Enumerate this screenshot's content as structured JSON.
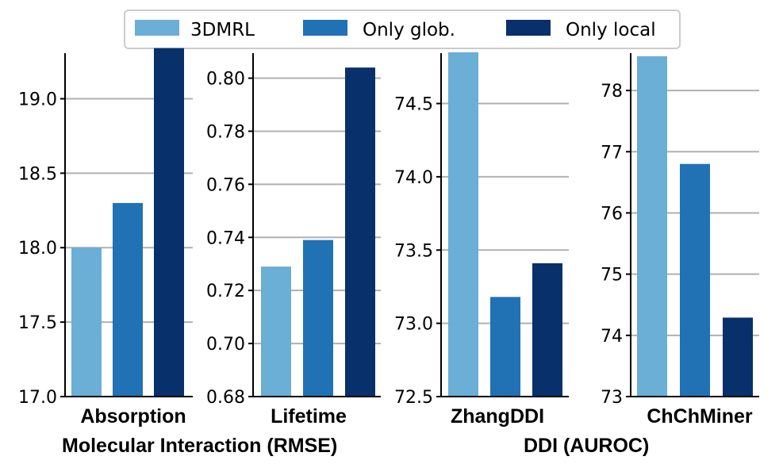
{
  "legend": [
    {
      "label": "3DMRL",
      "color": "#6baed6"
    },
    {
      "label": "Only glob.",
      "color": "#2171b5"
    },
    {
      "label": "Only local",
      "color": "#08306b"
    }
  ],
  "group_labels": {
    "left": "Molecular Interaction (RMSE)",
    "right": "DDI (AUROC)"
  },
  "chart_data": [
    {
      "type": "bar",
      "title": "Absorption",
      "categories": [
        "3DMRL",
        "Only glob.",
        "Only local"
      ],
      "values": [
        18.0,
        18.3,
        19.34
      ],
      "ylim": [
        17.0,
        19.45
      ],
      "yticks": [
        17.0,
        17.5,
        18.0,
        18.5,
        19.0
      ],
      "tick_labels": [
        "17.0",
        "17.5",
        "18.0",
        "18.5",
        "19.0"
      ],
      "grid": true
    },
    {
      "type": "bar",
      "title": "Lifetime",
      "categories": [
        "3DMRL",
        "Only glob.",
        "Only local"
      ],
      "values": [
        0.729,
        0.739,
        0.804
      ],
      "ylim": [
        0.68,
        0.8175
      ],
      "yticks": [
        0.68,
        0.7,
        0.72,
        0.74,
        0.76,
        0.78,
        0.8
      ],
      "tick_labels": [
        "0.68",
        "0.70",
        "0.72",
        "0.74",
        "0.76",
        "0.78",
        "0.80"
      ],
      "grid": true
    },
    {
      "type": "bar",
      "title": "ZhangDDI",
      "categories": [
        "3DMRL",
        "Only glob.",
        "Only local"
      ],
      "values": [
        74.85,
        73.18,
        73.41
      ],
      "ylim": [
        72.5,
        74.99
      ],
      "yticks": [
        72.5,
        73.0,
        73.5,
        74.0,
        74.5
      ],
      "tick_labels": [
        "72.5",
        "73.0",
        "73.5",
        "74.0",
        "74.5"
      ],
      "grid": true
    },
    {
      "type": "bar",
      "title": "ChChMiner",
      "categories": [
        "3DMRL",
        "Only glob.",
        "Only local"
      ],
      "values": [
        78.56,
        76.8,
        74.29
      ],
      "ylim": [
        73.0,
        78.96
      ],
      "yticks": [
        73,
        74,
        75,
        76,
        77,
        78
      ],
      "tick_labels": [
        "73",
        "74",
        "75",
        "76",
        "77",
        "78"
      ],
      "grid": true
    }
  ]
}
